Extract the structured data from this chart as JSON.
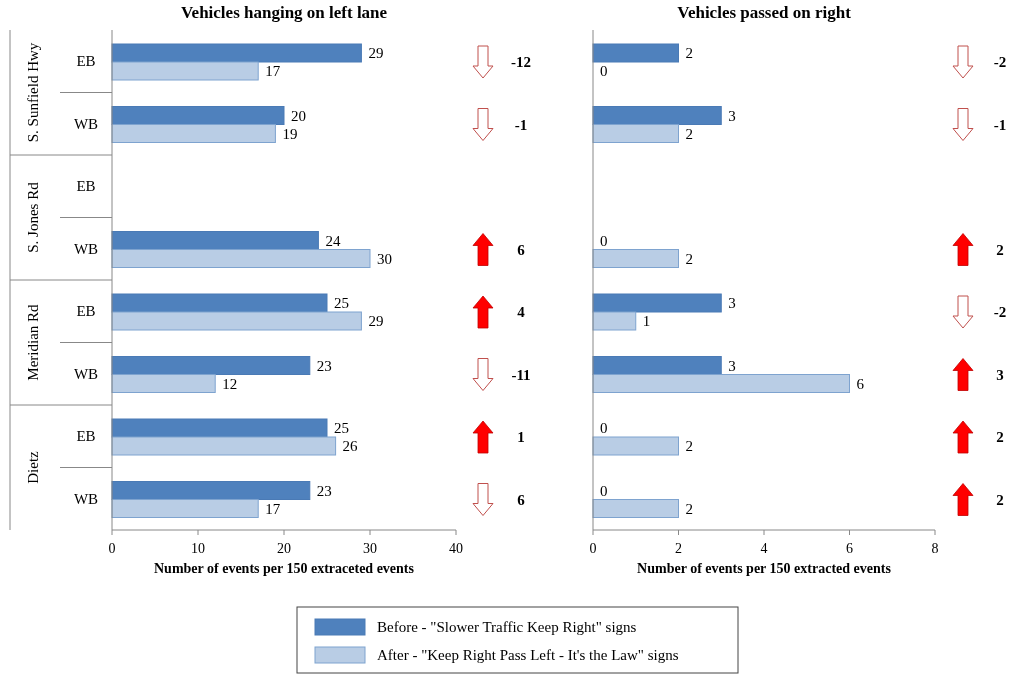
{
  "chart_data": [
    {
      "type": "bar",
      "orientation": "horizontal",
      "title": "Vehicles hanging on left lane",
      "xlabel": "Number of events per 150 extraceted events",
      "categories": [
        "EB",
        "WB",
        "EB",
        "WB",
        "EB",
        "WB",
        "EB",
        "WB"
      ],
      "series": [
        {
          "name": "Before - \"Slower Traffic Keep Right\" signs",
          "color": "#4f81bd",
          "values": [
            29,
            20,
            null,
            24,
            25,
            23,
            25,
            23
          ]
        },
        {
          "name": "After - \"Keep Right Pass Left - It's the Law\" signs",
          "color": "#b9cde5",
          "values": [
            17,
            19,
            null,
            30,
            29,
            12,
            26,
            17
          ]
        }
      ],
      "xlim": [
        0,
        40
      ],
      "xticks": [
        0,
        10,
        20,
        30,
        40
      ],
      "data_labels": true,
      "grid": false,
      "legend": "bottom",
      "annotations": [
        "S. Sunfield Hwy",
        "S. Jones Rd",
        "Meridian Rd",
        "Dietz",
        "-12",
        "-1",
        "6",
        "4",
        "-11",
        "1",
        "6"
      ]
    },
    {
      "type": "bar",
      "orientation": "horizontal",
      "title": "Vehicles passed on right",
      "xlabel": "Number of events per 150 extracted events",
      "categories": [
        null,
        null,
        null,
        null,
        null,
        null,
        null,
        null
      ],
      "series": [
        {
          "color": "#4f81bd",
          "values": [
            2,
            3,
            null,
            0,
            3,
            3,
            0,
            0
          ]
        },
        {
          "color": "#b9cde5",
          "values": [
            0,
            2,
            null,
            2,
            1,
            6,
            2,
            2
          ]
        }
      ],
      "xlim": [
        0,
        8
      ],
      "xticks": [
        0,
        2,
        4,
        6,
        8
      ],
      "data_labels": true,
      "grid": false,
      "annotations": [
        "-2",
        "-1",
        "2",
        "-2",
        "3",
        "2",
        "2"
      ]
    }
  ]
}
